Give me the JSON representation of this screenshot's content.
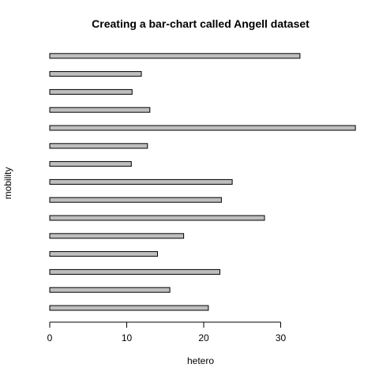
{
  "chart_data": {
    "type": "bar",
    "orientation": "horizontal",
    "title": "Creating a bar-chart called Angell dataset",
    "xlabel": "hetero",
    "ylabel": "mobility",
    "xlim": [
      0,
      40
    ],
    "xticks": [
      0,
      10,
      20,
      30
    ],
    "values": [
      20.6,
      15.6,
      22.1,
      14.0,
      17.4,
      27.9,
      22.3,
      23.7,
      10.6,
      12.7,
      39.7,
      13.0,
      10.7,
      11.9,
      32.5
    ],
    "bar_color": "#bebebe",
    "grid": false
  }
}
